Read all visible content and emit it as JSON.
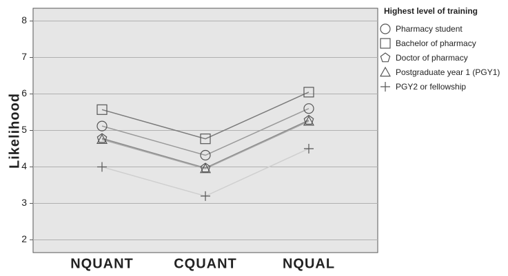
{
  "chart_data": {
    "type": "line",
    "y_label": "Likelihood",
    "categories": [
      "NQUANT",
      "CQUANT",
      "NQUAL"
    ],
    "ylim": [
      1.65,
      8.35
    ],
    "yticks": [
      2,
      3,
      4,
      5,
      6,
      7,
      8
    ],
    "grid": true,
    "legend_title": "Highest level of training",
    "legend_position": "right",
    "series": [
      {
        "name": "Pharmacy student",
        "marker": "circle",
        "color": "#9a9a9a",
        "values": [
          5.12,
          4.32,
          5.6
        ]
      },
      {
        "name": "Bachelor of pharmacy",
        "marker": "square",
        "color": "#7a7a7a",
        "values": [
          5.57,
          4.77,
          6.05
        ]
      },
      {
        "name": "Doctor of pharmacy",
        "marker": "pentagon",
        "color": "#8a8a8a",
        "values": [
          4.78,
          3.97,
          5.28
        ]
      },
      {
        "name": "Postgraduate year 1 (PGY1)",
        "marker": "triangle",
        "color": "#a8a8a8",
        "values": [
          4.75,
          3.95,
          5.25
        ]
      },
      {
        "name": "PGY2 or fellowship",
        "marker": "plus",
        "color": "#cfcfcf",
        "values": [
          4.0,
          3.2,
          4.5
        ]
      }
    ]
  }
}
